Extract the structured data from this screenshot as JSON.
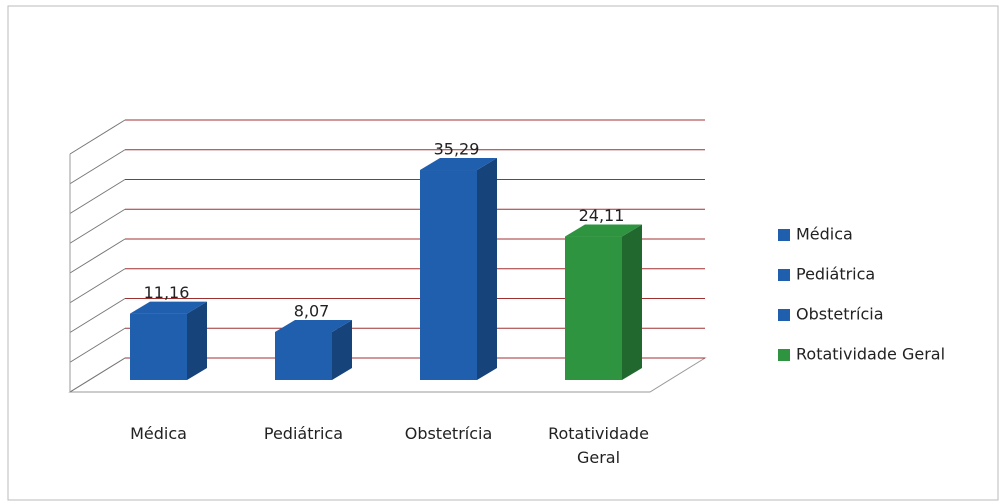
{
  "chart_data": {
    "type": "bar3d",
    "categories": [
      "Médica",
      "Pediátrica",
      "Obstetrícia",
      "Rotatividade Geral"
    ],
    "values": [
      11.16,
      8.07,
      35.29,
      24.11
    ],
    "value_labels": [
      "11,16",
      "8,07",
      "35,29",
      "24,11"
    ],
    "colors": [
      "#1f5fae",
      "#1f5fae",
      "#1f5fae",
      "#2e9440"
    ],
    "ylim": [
      0,
      40
    ],
    "yticks": [
      0,
      5,
      10,
      15,
      20,
      25,
      30,
      35,
      40
    ],
    "grid": true,
    "grid_color": "#a03030",
    "legend": "right"
  }
}
